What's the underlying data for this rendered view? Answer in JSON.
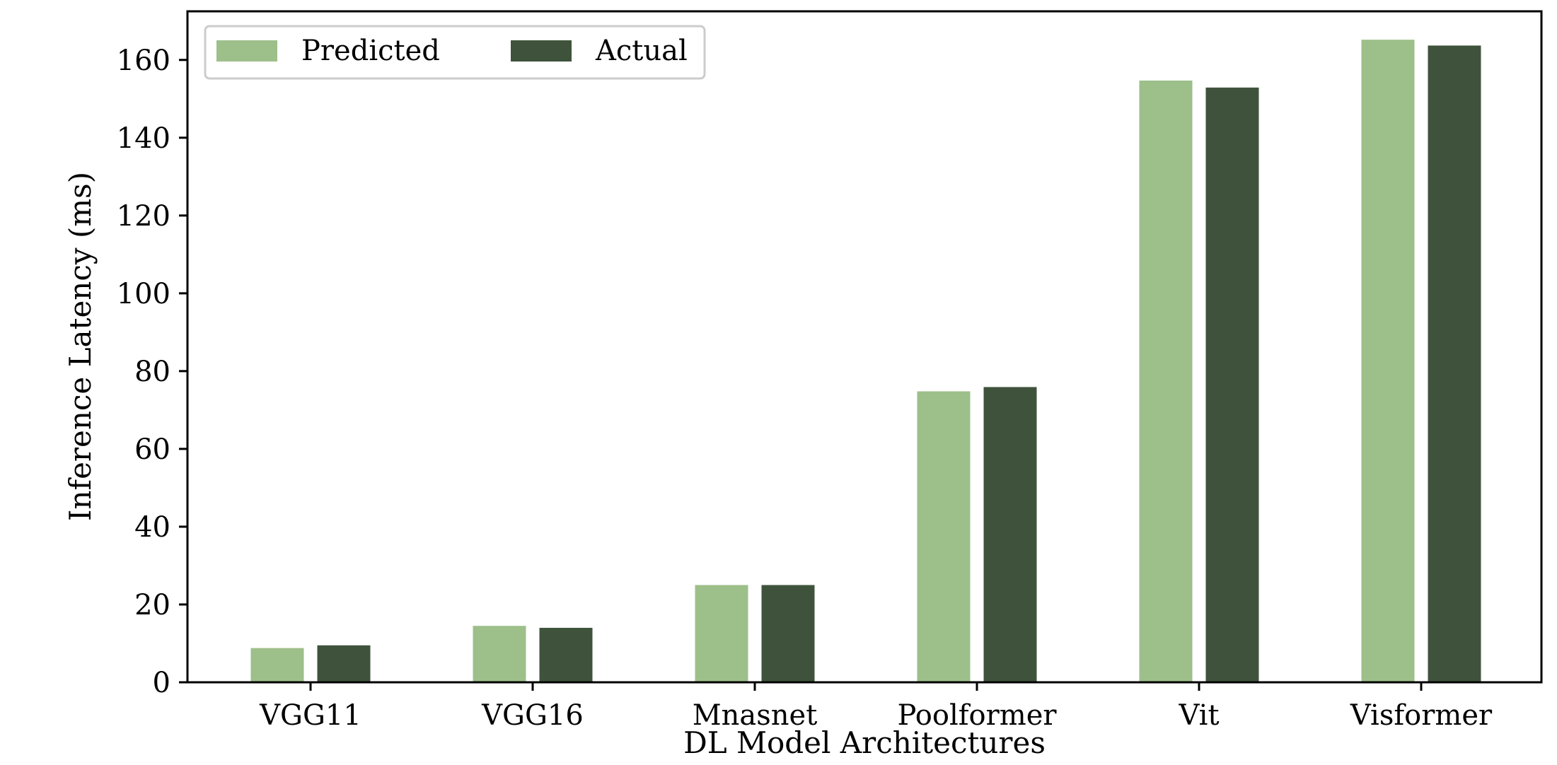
{
  "chart_data": {
    "type": "bar",
    "title": "",
    "xlabel": "DL Model Architectures",
    "ylabel": "Inference Latency (ms)",
    "categories": [
      "VGG11",
      "VGG16",
      "Mnasnet",
      "Poolformer",
      "Vit",
      "Visformer"
    ],
    "series": [
      {
        "name": "Predicted",
        "color": "#9dbf8a",
        "values": [
          8.8,
          14.5,
          25.0,
          74.8,
          154.7,
          165.2
        ]
      },
      {
        "name": "Actual",
        "color": "#3f533c",
        "values": [
          9.5,
          14.0,
          25.0,
          75.9,
          152.9,
          163.7
        ]
      }
    ],
    "ylim": [
      0,
      172.5
    ],
    "yticks": [
      0,
      20,
      40,
      60,
      80,
      100,
      120,
      140,
      160
    ],
    "grid": false,
    "legend": {
      "placement": "top-left",
      "columns": 2
    }
  }
}
